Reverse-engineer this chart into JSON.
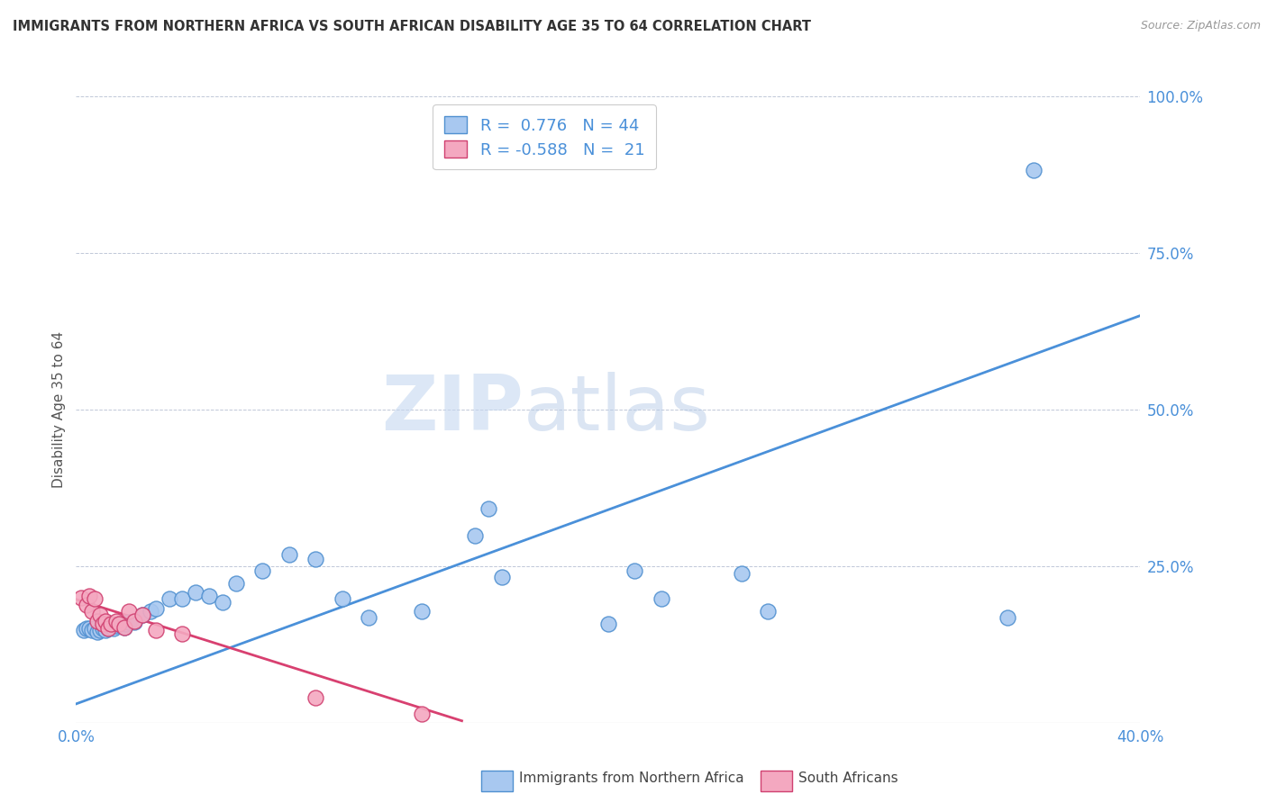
{
  "title": "IMMIGRANTS FROM NORTHERN AFRICA VS SOUTH AFRICAN DISABILITY AGE 35 TO 64 CORRELATION CHART",
  "source": "Source: ZipAtlas.com",
  "ylabel": "Disability Age 35 to 64",
  "xlim": [
    0.0,
    0.4
  ],
  "ylim": [
    0.0,
    1.0
  ],
  "xticks": [
    0.0,
    0.05,
    0.1,
    0.15,
    0.2,
    0.25,
    0.3,
    0.35,
    0.4
  ],
  "xtick_labels": [
    "0.0%",
    "",
    "",
    "",
    "",
    "",
    "",
    "",
    "40.0%"
  ],
  "yticks": [
    0.0,
    0.25,
    0.5,
    0.75,
    1.0
  ],
  "ytick_labels": [
    "",
    "25.0%",
    "50.0%",
    "75.0%",
    "100.0%"
  ],
  "blue_color": "#A8C8F0",
  "pink_color": "#F4A8C0",
  "blue_edge_color": "#5090D0",
  "pink_edge_color": "#D04070",
  "blue_line_color": "#4A90D9",
  "pink_line_color": "#D84070",
  "legend_label1": "Immigrants from Northern Africa",
  "legend_label2": "South Africans",
  "watermark_zip": "ZIP",
  "watermark_atlas": "atlas",
  "blue_x": [
    0.003,
    0.004,
    0.005,
    0.006,
    0.007,
    0.008,
    0.009,
    0.01,
    0.011,
    0.012,
    0.013,
    0.014,
    0.015,
    0.016,
    0.017,
    0.018,
    0.019,
    0.02,
    0.022,
    0.025,
    0.028,
    0.03,
    0.035,
    0.04,
    0.045,
    0.05,
    0.055,
    0.06,
    0.07,
    0.08,
    0.09,
    0.1,
    0.11,
    0.13,
    0.15,
    0.155,
    0.16,
    0.2,
    0.21,
    0.22,
    0.25,
    0.26,
    0.35,
    0.36
  ],
  "blue_y": [
    0.148,
    0.15,
    0.15,
    0.148,
    0.15,
    0.145,
    0.148,
    0.15,
    0.148,
    0.15,
    0.152,
    0.15,
    0.155,
    0.158,
    0.155,
    0.152,
    0.158,
    0.16,
    0.16,
    0.172,
    0.178,
    0.182,
    0.198,
    0.198,
    0.208,
    0.202,
    0.192,
    0.222,
    0.242,
    0.268,
    0.262,
    0.198,
    0.168,
    0.178,
    0.298,
    0.342,
    0.232,
    0.158,
    0.242,
    0.198,
    0.238,
    0.178,
    0.168,
    0.882
  ],
  "pink_x": [
    0.002,
    0.004,
    0.005,
    0.006,
    0.007,
    0.008,
    0.009,
    0.01,
    0.011,
    0.012,
    0.013,
    0.015,
    0.016,
    0.018,
    0.02,
    0.022,
    0.025,
    0.03,
    0.04,
    0.09,
    0.13
  ],
  "pink_y": [
    0.2,
    0.188,
    0.202,
    0.178,
    0.198,
    0.162,
    0.172,
    0.158,
    0.162,
    0.15,
    0.158,
    0.162,
    0.158,
    0.152,
    0.178,
    0.162,
    0.172,
    0.148,
    0.142,
    0.04,
    0.014
  ],
  "blue_trend_x": [
    0.0,
    0.4
  ],
  "blue_trend_y": [
    0.03,
    0.65
  ],
  "pink_trend_x": [
    0.0,
    0.145
  ],
  "pink_trend_y": [
    0.197,
    0.003
  ]
}
